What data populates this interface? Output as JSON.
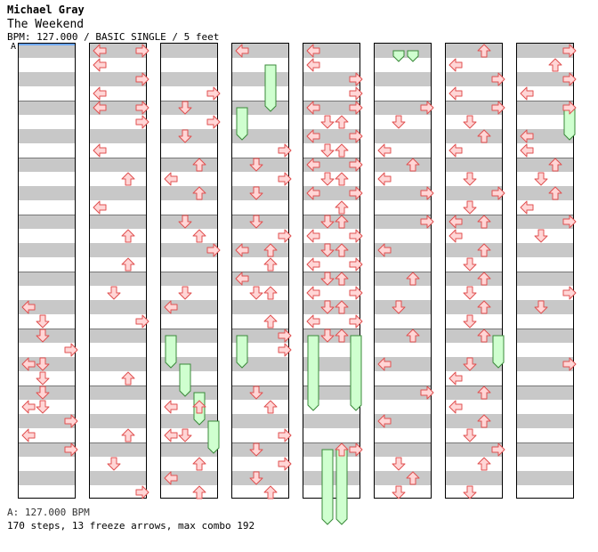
{
  "header": {
    "artist": "Michael Gray",
    "title": "The Weekend",
    "meta": "BPM: 127.000 / BASIC SINGLE / 5 feet",
    "bpm_marker": "A"
  },
  "footer": {
    "bpm_legend": "A: 127.000 BPM",
    "stats": "170 steps, 13 freeze arrows, max combo 192"
  },
  "colors": {
    "arrow_fill": "#ffd6d6",
    "arrow_stroke": "#e05050",
    "freeze_fill": "#cfffcf",
    "freeze_stroke": "#3a8a3a",
    "band": "#c8c8c8"
  },
  "chart": {
    "beats_per_column": 32,
    "columns": [
      {
        "arrows": [
          [
            0,
            18
          ],
          [
            1,
            19
          ],
          [
            1,
            20
          ],
          [
            3,
            21
          ],
          [
            0,
            22
          ],
          [
            1,
            22
          ],
          [
            1,
            23
          ],
          [
            1,
            24
          ],
          [
            0,
            25
          ],
          [
            1,
            25
          ],
          [
            3,
            26
          ],
          [
            0,
            27
          ],
          [
            3,
            28
          ]
        ],
        "freezes": []
      },
      {
        "arrows": [
          [
            0,
            0
          ],
          [
            3,
            0
          ],
          [
            0,
            1
          ],
          [
            3,
            2
          ],
          [
            0,
            3
          ],
          [
            0,
            4
          ],
          [
            3,
            4
          ],
          [
            3,
            5
          ],
          [
            0,
            7
          ],
          [
            2,
            9
          ],
          [
            0,
            11
          ],
          [
            2,
            13
          ],
          [
            2,
            15
          ],
          [
            1,
            17
          ],
          [
            3,
            19
          ],
          [
            2,
            23
          ],
          [
            2,
            27
          ],
          [
            1,
            29
          ],
          [
            3,
            31
          ]
        ],
        "freezes": []
      },
      {
        "arrows": [
          [
            3,
            3
          ],
          [
            1,
            4
          ],
          [
            3,
            5
          ],
          [
            1,
            6
          ],
          [
            2,
            8
          ],
          [
            0,
            9
          ],
          [
            2,
            10
          ],
          [
            1,
            12
          ],
          [
            2,
            13
          ],
          [
            3,
            14
          ],
          [
            1,
            17
          ],
          [
            0,
            18
          ],
          [
            0,
            25
          ],
          [
            2,
            25
          ],
          [
            0,
            27
          ],
          [
            1,
            27
          ],
          [
            2,
            29
          ],
          [
            0,
            30
          ],
          [
            2,
            31
          ]
        ],
        "freezes": [
          [
            0,
            20,
            22
          ],
          [
            1,
            22,
            24
          ],
          [
            2,
            24,
            26
          ],
          [
            3,
            26,
            28
          ]
        ]
      },
      {
        "arrows": [
          [
            0,
            0
          ],
          [
            3,
            7
          ],
          [
            1,
            8
          ],
          [
            3,
            9
          ],
          [
            1,
            10
          ],
          [
            1,
            12
          ],
          [
            3,
            13
          ],
          [
            2,
            14
          ],
          [
            0,
            14
          ],
          [
            2,
            15
          ],
          [
            0,
            16
          ],
          [
            1,
            17
          ],
          [
            2,
            17
          ],
          [
            2,
            19
          ],
          [
            3,
            20
          ],
          [
            3,
            21
          ],
          [
            1,
            24
          ],
          [
            2,
            25
          ],
          [
            3,
            27
          ],
          [
            1,
            28
          ],
          [
            3,
            29
          ],
          [
            1,
            30
          ],
          [
            2,
            31
          ]
        ],
        "freezes": [
          [
            2,
            1,
            4
          ],
          [
            0,
            4,
            6
          ],
          [
            0,
            20,
            22
          ]
        ]
      },
      {
        "arrows": [
          [
            0,
            0
          ],
          [
            0,
            1
          ],
          [
            3,
            2
          ],
          [
            3,
            3
          ],
          [
            0,
            4
          ],
          [
            3,
            4
          ],
          [
            1,
            5
          ],
          [
            2,
            5
          ],
          [
            0,
            6
          ],
          [
            3,
            6
          ],
          [
            1,
            7
          ],
          [
            2,
            7
          ],
          [
            0,
            8
          ],
          [
            3,
            8
          ],
          [
            1,
            9
          ],
          [
            2,
            9
          ],
          [
            0,
            10
          ],
          [
            3,
            10
          ],
          [
            2,
            11
          ],
          [
            1,
            12
          ],
          [
            2,
            12
          ],
          [
            0,
            13
          ],
          [
            3,
            13
          ],
          [
            1,
            14
          ],
          [
            2,
            14
          ],
          [
            0,
            15
          ],
          [
            3,
            15
          ],
          [
            1,
            16
          ],
          [
            2,
            16
          ],
          [
            0,
            17
          ],
          [
            3,
            17
          ],
          [
            1,
            18
          ],
          [
            2,
            18
          ],
          [
            0,
            19
          ],
          [
            3,
            19
          ],
          [
            2,
            20
          ],
          [
            1,
            20
          ],
          [
            3,
            28
          ],
          [
            2,
            28
          ]
        ],
        "freezes": [
          [
            0,
            20,
            25
          ],
          [
            3,
            20,
            25
          ],
          [
            1,
            28,
            33
          ],
          [
            2,
            28,
            33
          ]
        ]
      },
      {
        "arrows": [
          [
            3,
            4
          ],
          [
            1,
            5
          ],
          [
            0,
            7
          ],
          [
            2,
            8
          ],
          [
            0,
            9
          ],
          [
            3,
            10
          ],
          [
            3,
            12
          ],
          [
            0,
            14
          ],
          [
            2,
            16
          ],
          [
            1,
            18
          ],
          [
            2,
            20
          ],
          [
            0,
            22
          ],
          [
            3,
            24
          ],
          [
            0,
            26
          ],
          [
            1,
            29
          ],
          [
            2,
            30
          ],
          [
            1,
            31
          ]
        ],
        "freezes": [
          [
            1,
            0,
            0.5
          ],
          [
            2,
            0,
            0.5
          ]
        ]
      },
      {
        "arrows": [
          [
            2,
            0
          ],
          [
            0,
            1
          ],
          [
            3,
            2
          ],
          [
            0,
            3
          ],
          [
            3,
            4
          ],
          [
            1,
            5
          ],
          [
            2,
            6
          ],
          [
            0,
            7
          ],
          [
            1,
            9
          ],
          [
            3,
            10
          ],
          [
            1,
            11
          ],
          [
            0,
            12
          ],
          [
            2,
            12
          ],
          [
            0,
            13
          ],
          [
            2,
            14
          ],
          [
            1,
            15
          ],
          [
            2,
            16
          ],
          [
            1,
            17
          ],
          [
            2,
            18
          ],
          [
            1,
            19
          ],
          [
            2,
            20
          ],
          [
            1,
            22
          ],
          [
            0,
            23
          ],
          [
            2,
            24
          ],
          [
            0,
            25
          ],
          [
            2,
            26
          ],
          [
            1,
            27
          ],
          [
            3,
            28
          ],
          [
            2,
            29
          ],
          [
            1,
            31
          ]
        ],
        "freezes": [
          [
            3,
            20,
            22
          ]
        ]
      },
      {
        "arrows": [
          [
            3,
            0
          ],
          [
            2,
            1
          ],
          [
            3,
            2
          ],
          [
            0,
            3
          ],
          [
            3,
            4
          ],
          [
            0,
            6
          ],
          [
            0,
            7
          ],
          [
            2,
            8
          ],
          [
            1,
            9
          ],
          [
            2,
            10
          ],
          [
            0,
            11
          ],
          [
            3,
            12
          ],
          [
            1,
            13
          ],
          [
            3,
            17
          ],
          [
            1,
            18
          ],
          [
            3,
            22
          ]
        ],
        "freezes": [
          [
            3,
            4,
            6
          ]
        ]
      }
    ]
  }
}
